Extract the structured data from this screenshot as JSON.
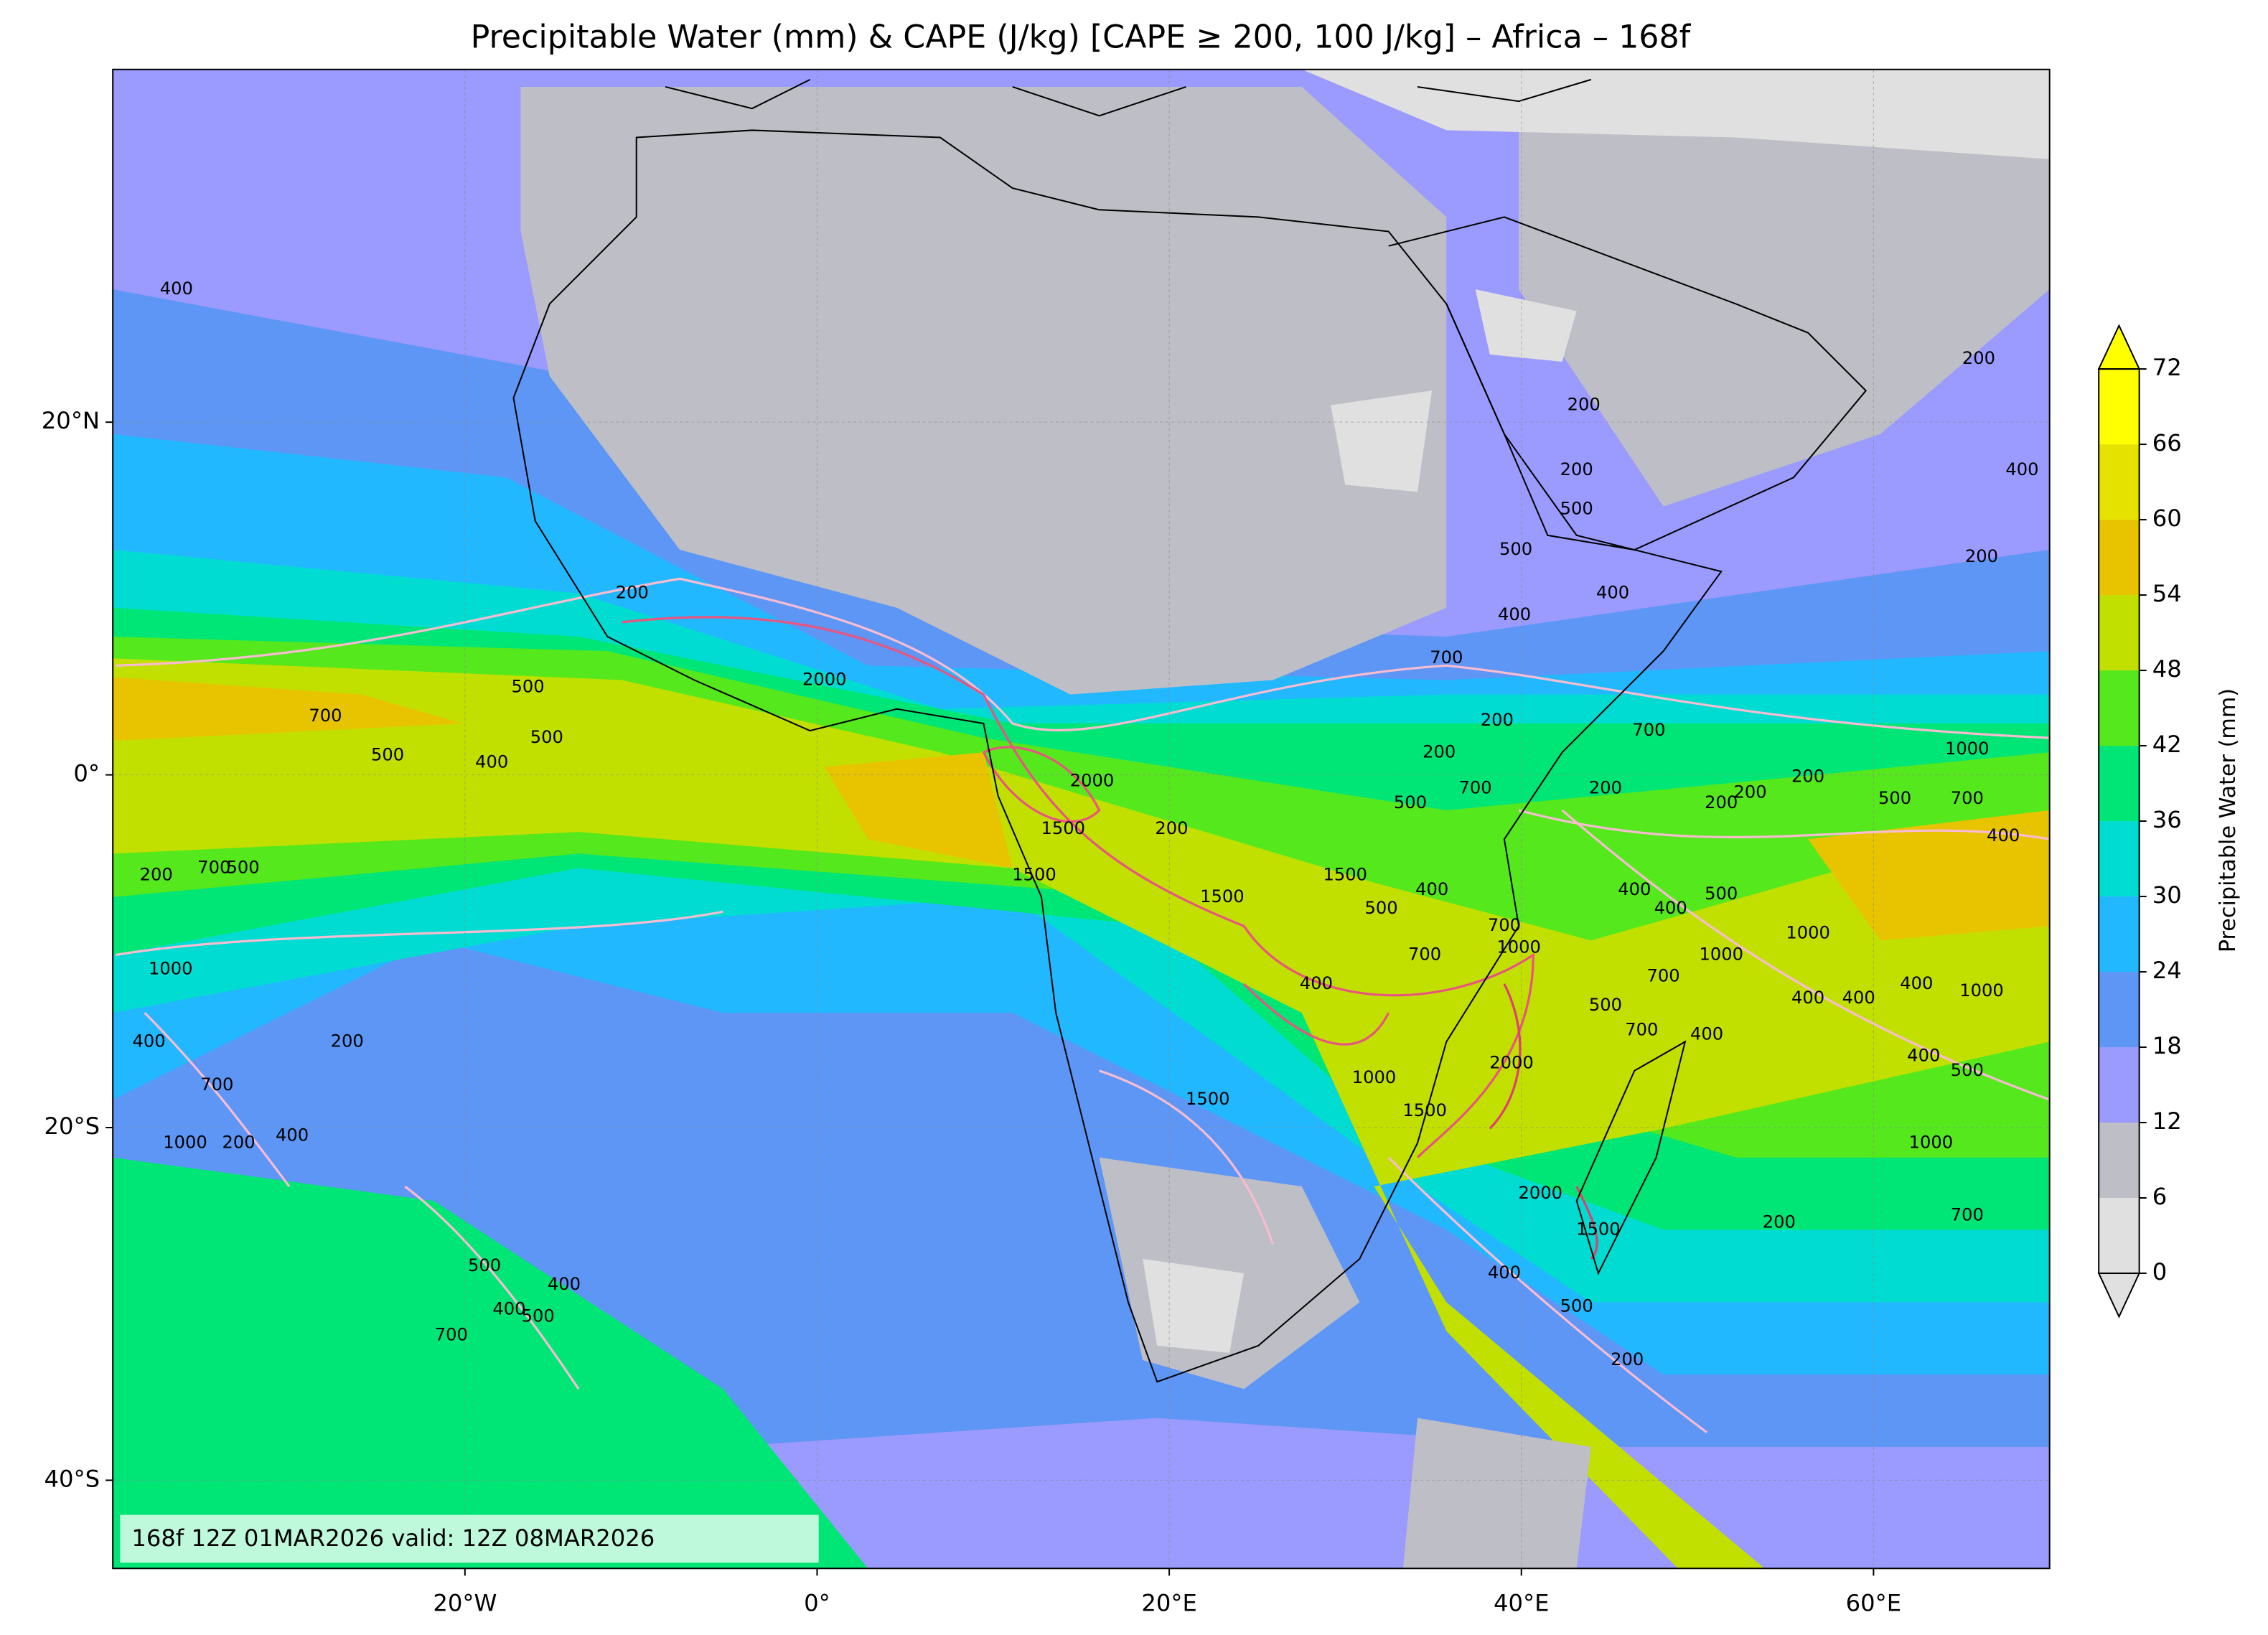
{
  "chart_data": {
    "type": "map",
    "title": "Precipitable Water (mm) & CAPE (J/kg) [CAPE ≥ 200, 100 J/kg] – Africa – 168f",
    "xlim": [
      -40,
      70
    ],
    "ylim": [
      -45,
      40
    ],
    "xticks": [
      {
        "value": -20,
        "label": "20°W"
      },
      {
        "value": 0,
        "label": "0°"
      },
      {
        "value": 20,
        "label": "20°E"
      },
      {
        "value": 40,
        "label": "40°E"
      },
      {
        "value": 60,
        "label": "60°E"
      }
    ],
    "yticks": [
      {
        "value": 20,
        "label": "20°N"
      },
      {
        "value": 0,
        "label": "0°"
      },
      {
        "value": -20,
        "label": "20°S"
      },
      {
        "value": -40,
        "label": "40°S"
      }
    ],
    "grid": true,
    "colorbar": {
      "label": "Precipitable Water (mm)",
      "ticks": [
        0,
        6,
        12,
        18,
        24,
        30,
        36,
        42,
        48,
        54,
        60,
        66,
        72
      ],
      "colors": [
        "#e0e0e0",
        "#bebec6",
        "#9a9aff",
        "#5e96f6",
        "#22b8ff",
        "#00dcd2",
        "#00e676",
        "#55e81c",
        "#c2e000",
        "#e8c400",
        "#e6e200",
        "#ffff00"
      ],
      "extend": "both"
    },
    "contour_levels": [
      200,
      400,
      500,
      700,
      1000,
      1500,
      2000
    ],
    "annotation": "168f 12Z 01MAR2026 valid: 12Z 08MAR2026"
  }
}
